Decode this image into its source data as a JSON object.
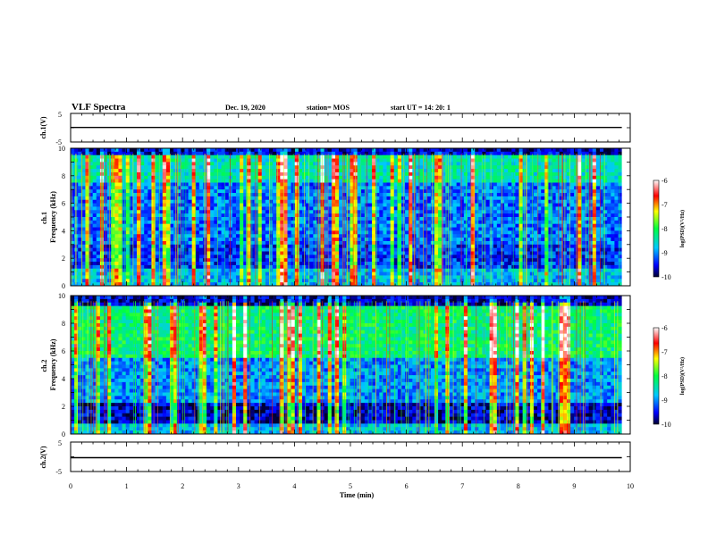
{
  "header": {
    "title": "VLF Spectra",
    "date": "Dec. 19, 2020",
    "station": "station= MOS",
    "start_ut": "start  UT =   14: 20: 1"
  },
  "chart_data": [
    {
      "id": "ch1-waveform",
      "type": "line",
      "ylabel": "ch.1(V)",
      "ylim": [
        -5,
        5
      ],
      "yticks": [
        "5",
        "-5"
      ],
      "xlim": [
        0,
        10
      ],
      "series": [
        {
          "x": [
            0,
            9.85
          ],
          "y": [
            0.1,
            0.1
          ]
        }
      ]
    },
    {
      "id": "ch1-spectrogram",
      "type": "heatmap",
      "ylabel": "ch.1\nFrequency  (kHz)",
      "ylim": [
        0,
        10
      ],
      "yticks": [
        "10",
        "8",
        "6",
        "4",
        "2",
        "0"
      ],
      "xlim": [
        0,
        10
      ],
      "data_xmax": 9.85,
      "colorbar": {
        "label": "log(PSD)(V²/Hz)",
        "range": [
          -10,
          -6
        ],
        "ticks": [
          "-6",
          "-7",
          "-8",
          "-9",
          "-10"
        ]
      }
    },
    {
      "id": "ch2-spectrogram",
      "type": "heatmap",
      "ylabel": "ch.2\nFrequency  (kHz)",
      "ylim": [
        0,
        10
      ],
      "yticks": [
        "10",
        "8",
        "6",
        "4",
        "2",
        "0"
      ],
      "xlim": [
        0,
        10
      ],
      "data_xmax": 9.85,
      "colorbar": {
        "label": "log(PSD)(V²/Hz)",
        "range": [
          -10,
          -6
        ],
        "ticks": [
          "-6",
          "-7",
          "-8",
          "-9",
          "-10"
        ]
      }
    },
    {
      "id": "ch2-waveform",
      "type": "line",
      "ylabel": "ch.2(V)",
      "ylim": [
        -5,
        5
      ],
      "yticks": [
        "5",
        "-5"
      ],
      "xlim": [
        0,
        10
      ],
      "xlabel": "Time  (min)",
      "xticks": [
        "0",
        "1",
        "2",
        "3",
        "4",
        "5",
        "6",
        "7",
        "8",
        "9",
        "10"
      ],
      "series": [
        {
          "x": [
            0,
            9.85
          ],
          "y": [
            -0.3,
            -0.3
          ]
        }
      ]
    }
  ]
}
